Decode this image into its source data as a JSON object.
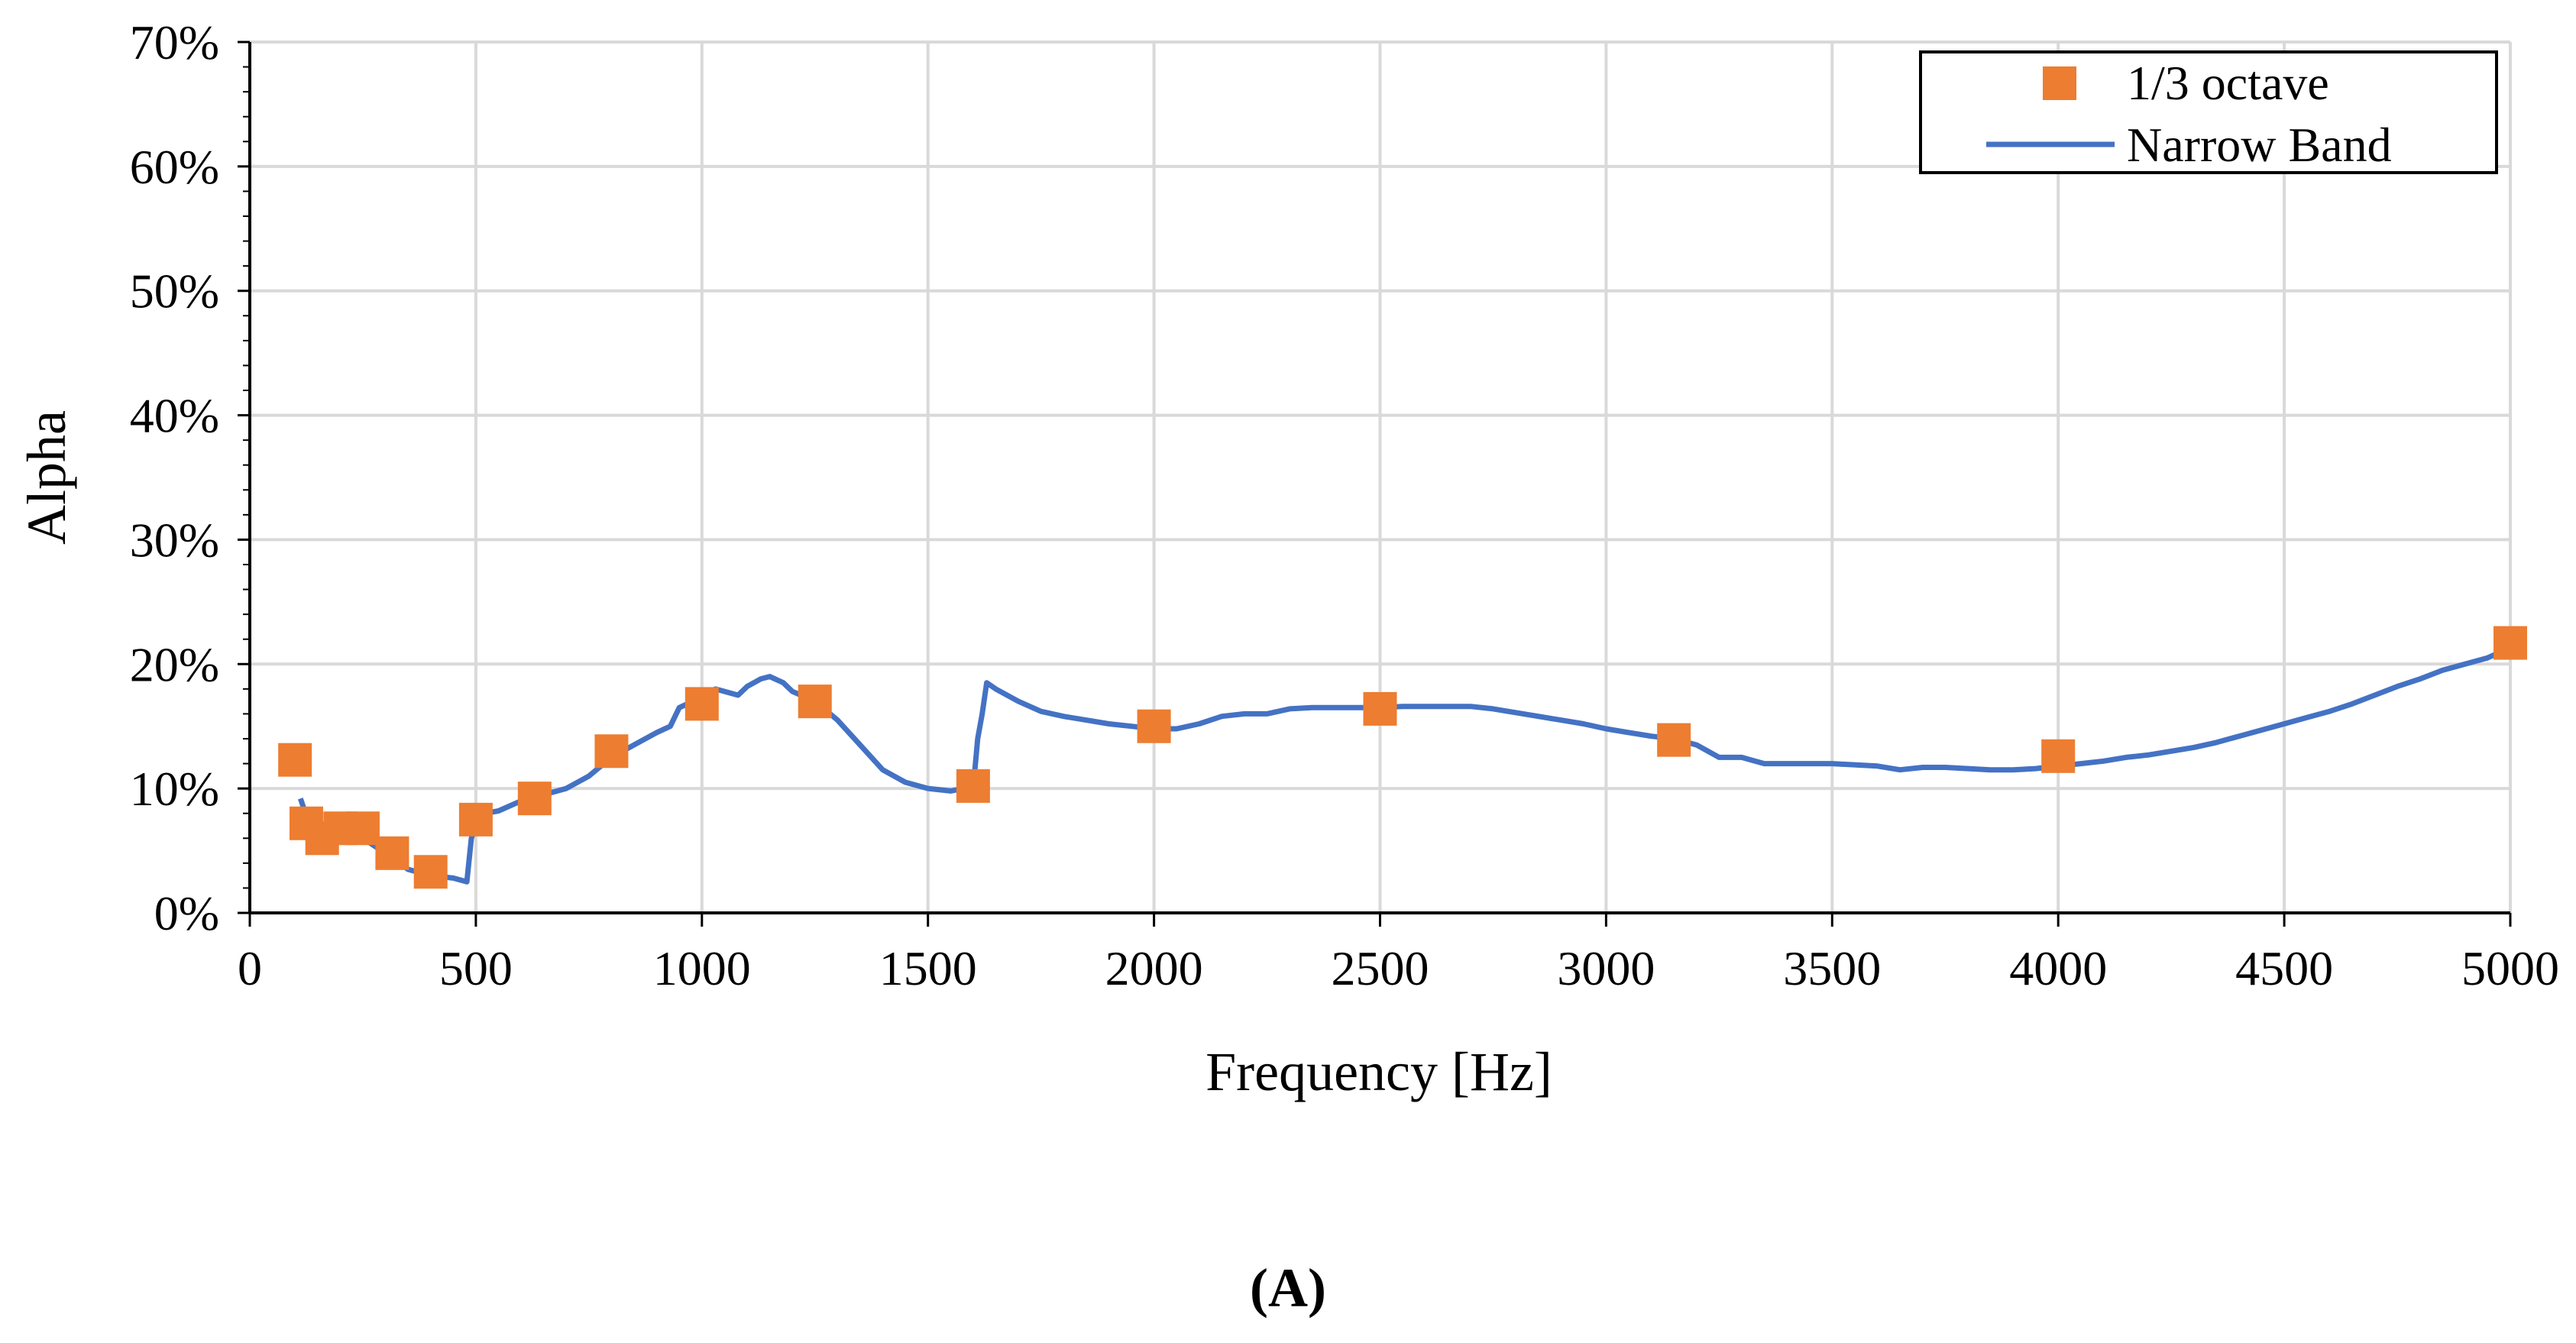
{
  "chart_data": {
    "type": "line",
    "title": "",
    "xlabel": "Frequency [Hz]",
    "ylabel": "Alpha",
    "xlim": [
      0,
      5000
    ],
    "ylim": [
      0,
      0.7
    ],
    "x_ticks": [
      0,
      500,
      1000,
      1500,
      2000,
      2500,
      3000,
      3500,
      4000,
      4500,
      5000
    ],
    "x_tick_labels": [
      "0",
      "500",
      "1000",
      "1500",
      "2000",
      "2500",
      "3000",
      "3500",
      "4000",
      "4500",
      "5000"
    ],
    "y_ticks": [
      0,
      0.1,
      0.2,
      0.3,
      0.4,
      0.5,
      0.6,
      0.7
    ],
    "y_tick_labels": [
      "0%",
      "10%",
      "20%",
      "30%",
      "40%",
      "50%",
      "60%",
      "70%"
    ],
    "grid": true,
    "legend_position": "top-right",
    "caption": "(A)",
    "series": [
      {
        "name": "1/3 octave",
        "kind": "scatter",
        "marker": "square",
        "color": "#ED7D31",
        "x": [
          100,
          125,
          160,
          200,
          250,
          315,
          400,
          500,
          630,
          800,
          1000,
          1250,
          1600,
          2000,
          2500,
          3150,
          4000,
          5000
        ],
        "y": [
          0.123,
          0.072,
          0.06,
          0.068,
          0.068,
          0.048,
          0.033,
          0.075,
          0.092,
          0.13,
          0.168,
          0.17,
          0.102,
          0.15,
          0.164,
          0.139,
          0.126,
          0.217
        ]
      },
      {
        "name": "Narrow Band",
        "kind": "line",
        "color": "#4472C4",
        "x": [
          112,
          125,
          135,
          150,
          175,
          200,
          250,
          300,
          350,
          400,
          450,
          480,
          490,
          500,
          520,
          550,
          600,
          650,
          700,
          750,
          800,
          850,
          900,
          930,
          950,
          980,
          1000,
          1030,
          1050,
          1080,
          1100,
          1130,
          1150,
          1180,
          1200,
          1250,
          1300,
          1350,
          1400,
          1450,
          1500,
          1550,
          1580,
          1600,
          1610,
          1620,
          1630,
          1650,
          1700,
          1750,
          1800,
          1850,
          1900,
          1950,
          2000,
          2050,
          2100,
          2150,
          2200,
          2250,
          2300,
          2350,
          2400,
          2450,
          2500,
          2550,
          2600,
          2650,
          2700,
          2750,
          2800,
          2850,
          2900,
          2950,
          3000,
          3050,
          3100,
          3150,
          3200,
          3250,
          3300,
          3350,
          3400,
          3500,
          3600,
          3650,
          3700,
          3750,
          3800,
          3850,
          3900,
          3950,
          4000,
          4050,
          4100,
          4150,
          4200,
          4250,
          4300,
          4350,
          4400,
          4450,
          4500,
          4550,
          4600,
          4650,
          4700,
          4750,
          4800,
          4850,
          4900,
          4950,
          4980,
          5000
        ],
        "y": [
          0.092,
          0.078,
          0.07,
          0.064,
          0.062,
          0.06,
          0.06,
          0.048,
          0.035,
          0.03,
          0.028,
          0.025,
          0.06,
          0.07,
          0.08,
          0.082,
          0.09,
          0.095,
          0.1,
          0.11,
          0.125,
          0.135,
          0.145,
          0.15,
          0.165,
          0.17,
          0.175,
          0.18,
          0.178,
          0.175,
          0.182,
          0.188,
          0.19,
          0.185,
          0.178,
          0.17,
          0.155,
          0.135,
          0.115,
          0.105,
          0.1,
          0.098,
          0.1,
          0.1,
          0.14,
          0.16,
          0.185,
          0.18,
          0.17,
          0.162,
          0.158,
          0.155,
          0.152,
          0.15,
          0.148,
          0.148,
          0.152,
          0.158,
          0.16,
          0.16,
          0.164,
          0.165,
          0.165,
          0.165,
          0.165,
          0.166,
          0.166,
          0.166,
          0.166,
          0.164,
          0.161,
          0.158,
          0.155,
          0.152,
          0.148,
          0.145,
          0.142,
          0.14,
          0.135,
          0.125,
          0.125,
          0.12,
          0.12,
          0.12,
          0.118,
          0.115,
          0.117,
          0.117,
          0.116,
          0.115,
          0.115,
          0.116,
          0.118,
          0.12,
          0.122,
          0.125,
          0.127,
          0.13,
          0.133,
          0.137,
          0.142,
          0.147,
          0.152,
          0.157,
          0.162,
          0.168,
          0.175,
          0.182,
          0.188,
          0.195,
          0.2,
          0.205,
          0.21,
          0.215
        ]
      }
    ]
  }
}
